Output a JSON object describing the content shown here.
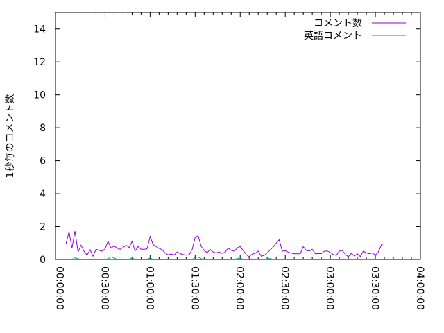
{
  "chart_data": {
    "type": "line",
    "title": "",
    "xlabel": "",
    "ylabel": "1秒毎のコメント数",
    "x_axis_type": "time",
    "xlim": [
      "-00:03:00",
      "04:00:00"
    ],
    "ylim": [
      0,
      15
    ],
    "x_ticks": [
      "00:00:00",
      "00:30:00",
      "01:00:00",
      "01:30:00",
      "02:00:00",
      "02:30:00",
      "03:00:00",
      "03:30:00",
      "04:00:00"
    ],
    "y_ticks": [
      "0",
      "2",
      "4",
      "6",
      "8",
      "10",
      "12",
      "14"
    ],
    "grid": false,
    "legend_position": "top-right",
    "x": [
      "00:04:00",
      "00:06:00",
      "00:08:00",
      "00:10:00",
      "00:12:00",
      "00:14:00",
      "00:16:00",
      "00:18:00",
      "00:20:00",
      "00:22:00",
      "00:24:00",
      "00:26:00",
      "00:28:00",
      "00:30:00",
      "00:32:00",
      "00:34:00",
      "00:36:00",
      "00:38:00",
      "00:40:00",
      "00:42:00",
      "00:44:00",
      "00:46:00",
      "00:48:00",
      "00:50:00",
      "00:52:00",
      "00:54:00",
      "00:56:00",
      "00:58:00",
      "01:00:00",
      "01:02:00",
      "01:04:00",
      "01:06:00",
      "01:08:00",
      "01:10:00",
      "01:12:00",
      "01:14:00",
      "01:16:00",
      "01:18:00",
      "01:20:00",
      "01:22:00",
      "01:24:00",
      "01:26:00",
      "01:28:00",
      "01:30:00",
      "01:32:00",
      "01:34:00",
      "01:36:00",
      "01:38:00",
      "01:40:00",
      "01:42:00",
      "01:44:00",
      "01:46:00",
      "01:48:00",
      "01:50:00",
      "01:52:00",
      "01:54:00",
      "01:56:00",
      "01:58:00",
      "02:00:00",
      "02:02:00",
      "02:04:00",
      "02:06:00",
      "02:08:00",
      "02:10:00",
      "02:12:00",
      "02:14:00",
      "02:16:00",
      "02:18:00",
      "02:20:00",
      "02:22:00",
      "02:24:00",
      "02:26:00",
      "02:28:00",
      "02:30:00",
      "02:32:00",
      "02:34:00",
      "02:36:00",
      "02:38:00",
      "02:40:00",
      "02:42:00",
      "02:44:00",
      "02:46:00",
      "02:48:00",
      "02:50:00",
      "02:52:00",
      "02:54:00",
      "02:56:00",
      "02:58:00",
      "03:00:00",
      "03:02:00",
      "03:04:00",
      "03:06:00",
      "03:08:00",
      "03:10:00",
      "03:12:00",
      "03:14:00",
      "03:16:00",
      "03:18:00",
      "03:20:00",
      "03:22:00",
      "03:24:00",
      "03:26:00",
      "03:28:00",
      "03:30:00",
      "03:32:00",
      "03:34:00",
      "03:36:00"
    ],
    "series": [
      {
        "name": "コメント数",
        "color": "#9400d3",
        "values": [
          0.97,
          1.68,
          0.69,
          1.72,
          0.45,
          0.87,
          0.5,
          0.27,
          0.59,
          0.2,
          0.62,
          0.55,
          0.51,
          0.65,
          1.11,
          0.69,
          0.83,
          0.69,
          0.62,
          0.73,
          0.87,
          0.73,
          1.11,
          0.51,
          0.79,
          0.62,
          0.62,
          0.65,
          1.4,
          0.9,
          0.78,
          0.67,
          0.6,
          0.4,
          0.28,
          0.34,
          0.27,
          0.46,
          0.36,
          0.3,
          0.26,
          0.3,
          0.6,
          1.35,
          1.45,
          0.8,
          0.55,
          0.41,
          0.62,
          0.45,
          0.4,
          0.45,
          0.37,
          0.45,
          0.7,
          0.55,
          0.5,
          0.7,
          0.79,
          0.55,
          0.3,
          0.17,
          0.33,
          0.37,
          0.52,
          0.2,
          0.25,
          0.4,
          0.58,
          0.76,
          1.0,
          1.2,
          0.5,
          0.54,
          0.44,
          0.39,
          0.35,
          0.35,
          0.35,
          0.78,
          0.55,
          0.51,
          0.62,
          0.35,
          0.36,
          0.36,
          0.5,
          0.52,
          0.43,
          0.3,
          0.25,
          0.5,
          0.55,
          0.3,
          0.17,
          0.37,
          0.22,
          0.34,
          0.18,
          0.5,
          0.4,
          0.35,
          0.4,
          0.27,
          0.45,
          0.9,
          0.97
        ]
      },
      {
        "name": "英語コメント",
        "color": "#009e73",
        "values": [
          0,
          0,
          0,
          0.1,
          0.05,
          0,
          0,
          0,
          0,
          0,
          0,
          0,
          0,
          0,
          0.05,
          0.15,
          0.1,
          0,
          0,
          0,
          0,
          0,
          0.1,
          0,
          0,
          0,
          0,
          0,
          0.1,
          0,
          0,
          0,
          0,
          0,
          0,
          0,
          0,
          0,
          0,
          0,
          0,
          0,
          0,
          0.12,
          0.15,
          0.05,
          0,
          0,
          0,
          0,
          0,
          0,
          0,
          0,
          0,
          0,
          0,
          0.05,
          0.1,
          0,
          0,
          0,
          0,
          0,
          0,
          0,
          0,
          0.05,
          0.05,
          0,
          0,
          0,
          0,
          0,
          0,
          0,
          0,
          0,
          0,
          0,
          0,
          0,
          0,
          0,
          0,
          0,
          0,
          0,
          0,
          0,
          0,
          0,
          0,
          0,
          0,
          0,
          0,
          0,
          0,
          0,
          0,
          0,
          0,
          0,
          0,
          0,
          0
        ]
      }
    ]
  }
}
